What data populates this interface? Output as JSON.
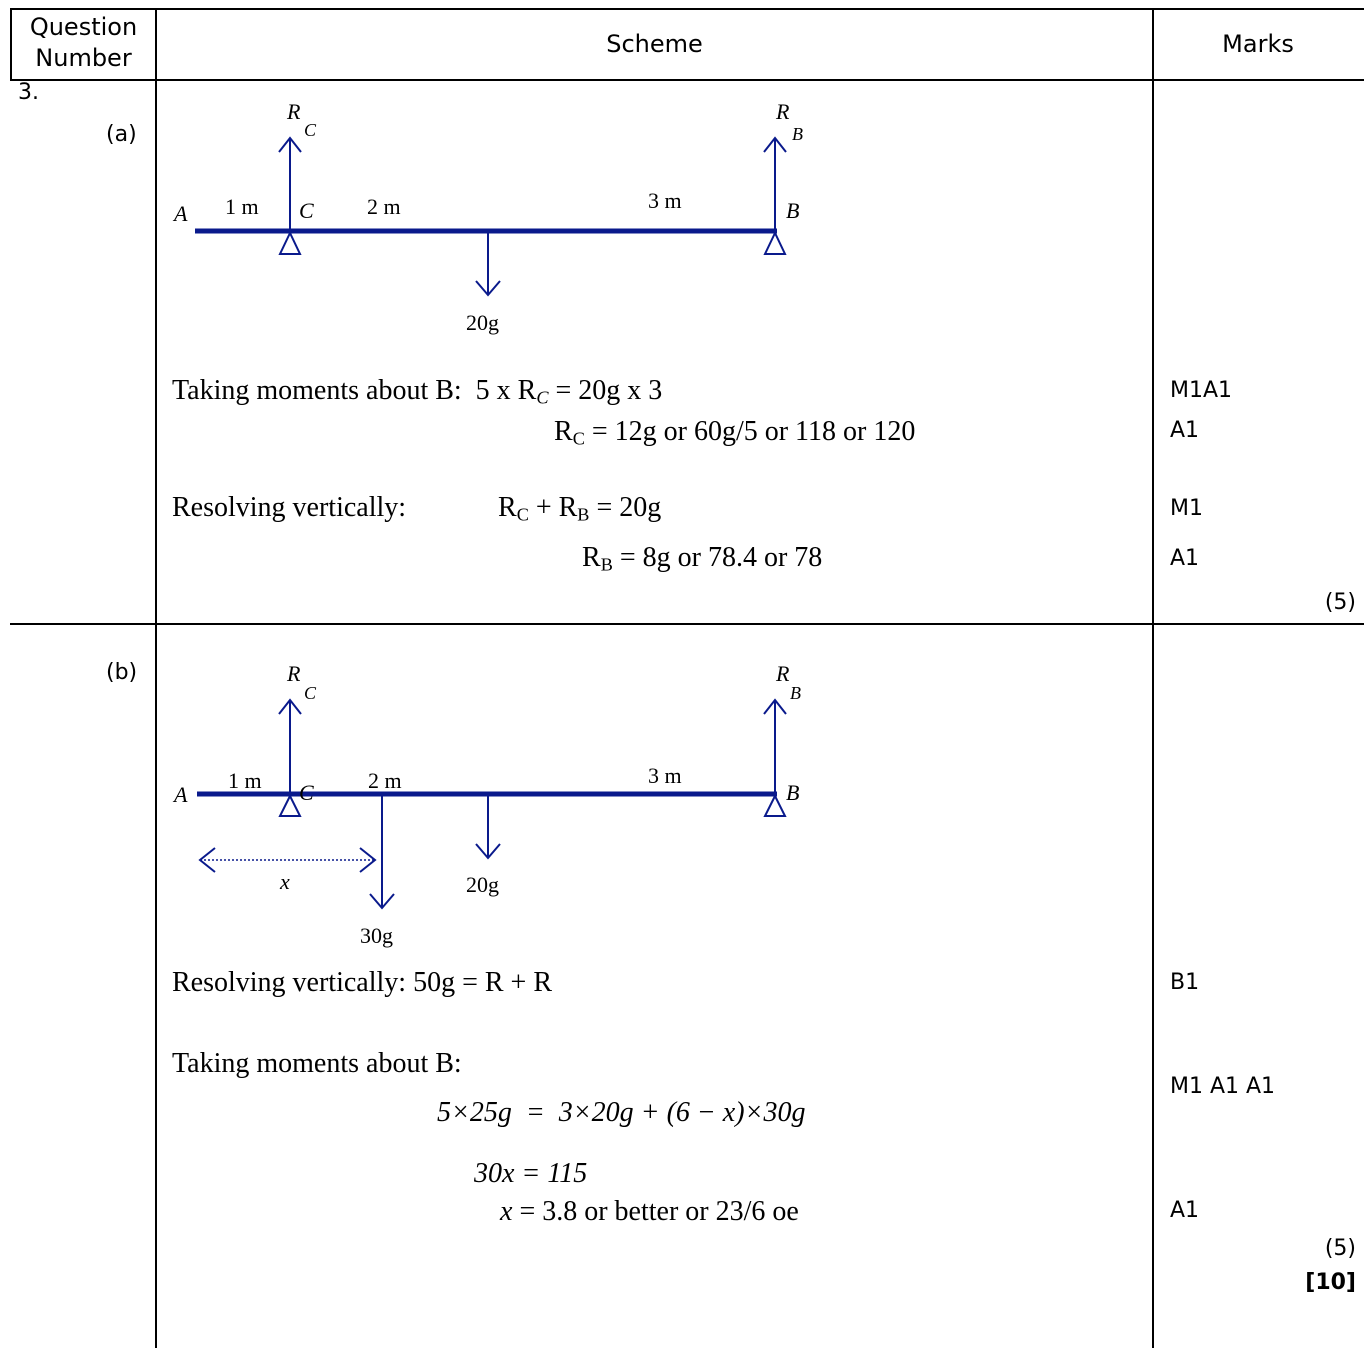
{
  "header": {
    "question_number_line1": "Question",
    "question_number_line2": "Number",
    "scheme": "Scheme",
    "marks": "Marks"
  },
  "question": "3.",
  "part_a": {
    "label": "(a)",
    "diagram": {
      "A": "A",
      "B": "B",
      "C": "C",
      "seg1": "1 m",
      "seg2": "2 m",
      "seg3": "3 m",
      "R": "R",
      "sub_C": "C",
      "sub_B": "B",
      "load": "20g"
    },
    "moments_text": "Taking moments about B:  5 x R",
    "moments_sub": "C",
    "moments_rhs": " = 20g x 3",
    "rc_R": "R",
    "rc_sub": "C",
    "rc_rest": " = 12g or 60g/5 or 118 or 120",
    "resolve_label": "Resolving vertically:",
    "resolve_R1": "R",
    "resolve_sub1": "C",
    "resolve_plus": " + R",
    "resolve_sub2": "B",
    "resolve_rhs": " = 20g",
    "rb_R": "R",
    "rb_sub": "B",
    "rb_rest": " = 8g or 78.4 or 78",
    "mark1": "M1A1",
    "mark2": "A1",
    "mark3": "M1",
    "mark4": "A1",
    "total": "(5)"
  },
  "part_b": {
    "label": "(b)",
    "diagram": {
      "A": "A",
      "B": "B",
      "C": "C",
      "seg1": "1 m",
      "seg2": "2 m",
      "seg3": "3 m",
      "R": "R",
      "sub_C": "C",
      "sub_B": "B",
      "load1": "20g",
      "load2": "30g",
      "x": "x"
    },
    "resolve_line": "Resolving vertically: 50g = R + R",
    "moments_heading": "Taking moments about B:",
    "eq1": "5×25g  =  3×20g + (6 − x)×30g",
    "eq2": "30x = 115",
    "eq3_x": "x",
    "eq3_rest": " = 3.8 or better or 23/6 oe",
    "mark1": "B1",
    "mark2": "M1 A1 A1",
    "mark3": "A1",
    "subtotal": "(5)",
    "total": "[10]"
  },
  "colors": {
    "diagram": "#0a1a8c",
    "grid": "#000000"
  }
}
